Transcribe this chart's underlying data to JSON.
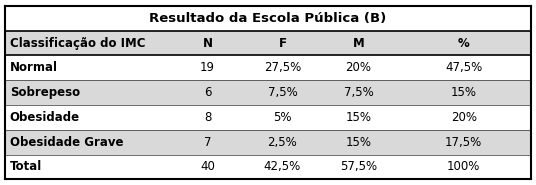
{
  "title": "Resultado da Escola Pública (B)",
  "columns": [
    "Classificação do IMC",
    "N",
    "F",
    "M",
    "%"
  ],
  "rows": [
    [
      "Normal",
      "19",
      "27,5%",
      "20%",
      "47,5%"
    ],
    [
      "Sobrepeso",
      "6",
      "7,5%",
      "7,5%",
      "15%"
    ],
    [
      "Obesidade",
      "8",
      "5%",
      "15%",
      "20%"
    ],
    [
      "Obesidade Grave",
      "7",
      "2,5%",
      "15%",
      "17,5%"
    ],
    [
      "Total",
      "40",
      "42,5%",
      "57,5%",
      "100%"
    ]
  ],
  "shaded_rows": [
    1,
    3
  ],
  "shade_color": "#d9d9d9",
  "white_color": "#ffffff",
  "header_shade_color": "#d9d9d9",
  "border_color": "#000000",
  "text_color": "#000000",
  "title_fontsize": 9.5,
  "header_fontsize": 8.5,
  "cell_fontsize": 8.5,
  "fig_width": 5.36,
  "fig_height": 1.85,
  "col_splits": [
    0.0,
    0.315,
    0.455,
    0.6,
    0.745,
    1.0
  ]
}
